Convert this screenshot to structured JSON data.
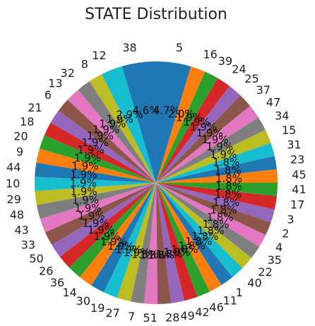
{
  "chart_data": {
    "type": "pie",
    "title": "STATE Distribution",
    "categories": [
      "5",
      "16",
      "39",
      "24",
      "25",
      "37",
      "47",
      "34",
      "15",
      "31",
      "23",
      "45",
      "41",
      "17",
      "3",
      "2",
      "4",
      "35",
      "22",
      "40",
      "1",
      "11",
      "46",
      "42",
      "49",
      "28",
      "51",
      "7",
      "27",
      "19",
      "30",
      "14",
      "36",
      "26",
      "50",
      "33",
      "43",
      "48",
      "29",
      "10",
      "44",
      "9",
      "20",
      "18",
      "21",
      "6",
      "13",
      "32",
      "8",
      "12",
      "38"
    ],
    "values": [
      4.7,
      2.0,
      1.9,
      1.9,
      1.9,
      1.9,
      1.9,
      1.9,
      1.9,
      1.8,
      1.8,
      1.8,
      1.8,
      1.8,
      1.8,
      1.8,
      1.8,
      1.8,
      1.8,
      1.8,
      1.8,
      1.8,
      1.8,
      1.8,
      1.8,
      1.8,
      1.8,
      1.8,
      1.9,
      1.9,
      1.9,
      1.9,
      1.9,
      1.9,
      1.9,
      1.9,
      1.9,
      1.9,
      1.9,
      1.9,
      1.9,
      1.9,
      1.9,
      1.9,
      1.9,
      1.9,
      1.9,
      1.9,
      1.9,
      2.9,
      4.6
    ],
    "value_labels": [
      "4.7%",
      "2.0%",
      "1.9%",
      "1.9%",
      "1.9%",
      "1.9%",
      "1.9%",
      "1.9%",
      "1.9%",
      "1.8%",
      "1.8%",
      "1.8%",
      "1.8%",
      "1.8%",
      "1.8%",
      "1.8%",
      "1.8%",
      "1.8%",
      "1.8%",
      "1.8%",
      "1.8%",
      "1.8%",
      "1.8%",
      "1.8%",
      "1.8%",
      "1.8%",
      "1.8%",
      "1.8%",
      "1.9%",
      "1.9%",
      "1.9%",
      "1.9%",
      "1.9%",
      "1.9%",
      "1.9%",
      "1.9%",
      "1.9%",
      "1.9%",
      "1.9%",
      "1.9%",
      "1.9%",
      "1.9%",
      "1.9%",
      "1.9%",
      "1.9%",
      "1.9%",
      "1.9%",
      "1.9%",
      "1.9%",
      "2.9%",
      "4.6%"
    ],
    "start_angle_deg": 90,
    "direction": "clockwise",
    "colors": [
      "#1f77b4",
      "#ff7f0e",
      "#2ca02c",
      "#d62728",
      "#9467bd",
      "#8c564b",
      "#e377c2",
      "#7f7f7f",
      "#bcbd22",
      "#17becf"
    ]
  }
}
